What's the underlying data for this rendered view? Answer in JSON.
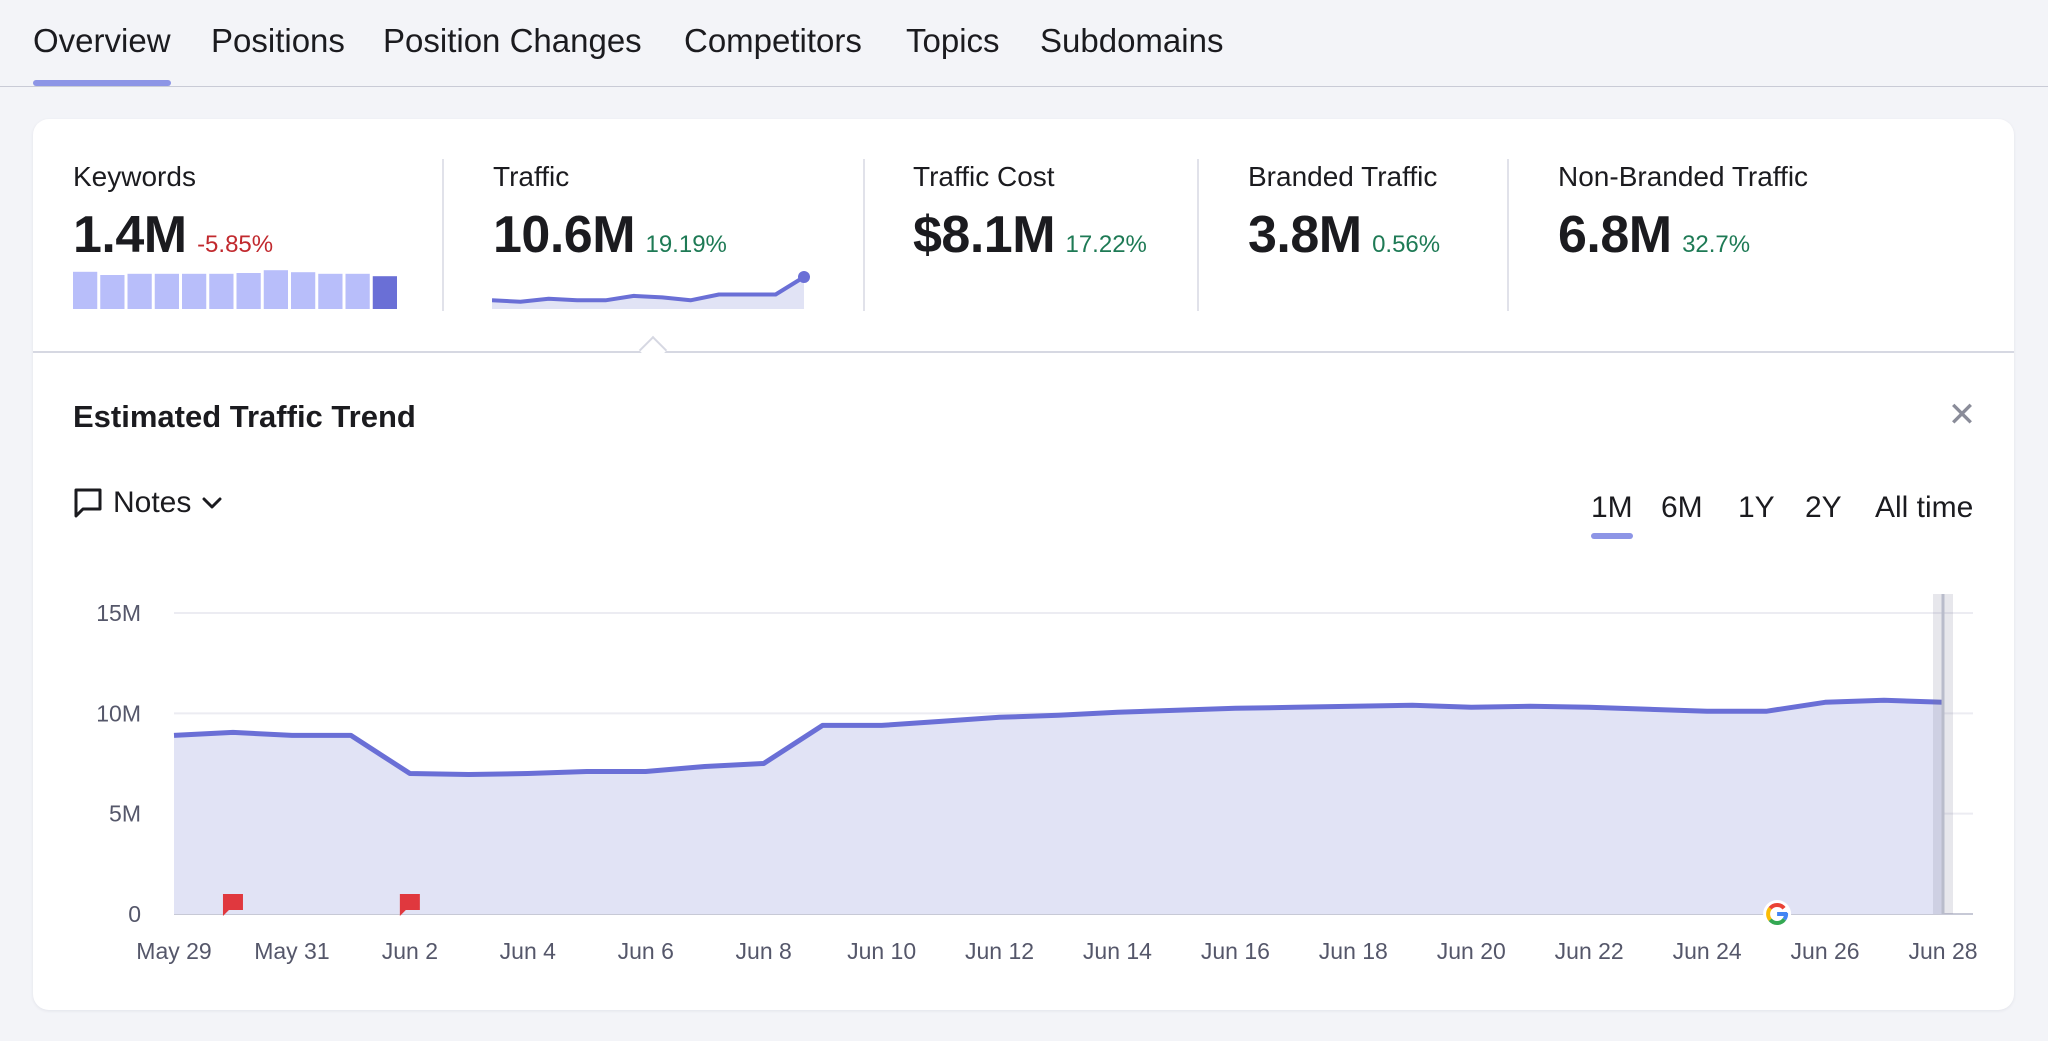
{
  "tabs": [
    {
      "label": "Overview",
      "active": true
    },
    {
      "label": "Positions"
    },
    {
      "label": "Position Changes"
    },
    {
      "label": "Competitors"
    },
    {
      "label": "Topics"
    },
    {
      "label": "Subdomains"
    }
  ],
  "metrics": [
    {
      "label": "Keywords",
      "value": "1.4M",
      "delta": "-5.85%",
      "trend": "negative"
    },
    {
      "label": "Traffic",
      "value": "10.6M",
      "delta": "19.19%",
      "trend": "positive"
    },
    {
      "label": "Traffic Cost",
      "value": "$8.1M",
      "delta": "17.22%",
      "trend": "positive"
    },
    {
      "label": "Branded Traffic",
      "value": "3.8M",
      "delta": "0.56%",
      "trend": "positive"
    },
    {
      "label": "Non-Branded Traffic",
      "value": "6.8M",
      "delta": "32.7%",
      "trend": "positive"
    }
  ],
  "keywords_sparkbars": [
    0.93,
    0.85,
    0.88,
    0.88,
    0.88,
    0.88,
    0.9,
    0.97,
    0.92,
    0.88,
    0.88,
    0.82
  ],
  "traffic_sparkline": [
    9.0,
    8.9,
    9.1,
    9.0,
    9.0,
    9.3,
    9.2,
    9.0,
    9.4,
    9.4,
    9.4,
    10.6
  ],
  "trend": {
    "title": "Estimated Traffic Trend",
    "close_icon": "close-icon",
    "notes_label": "Notes",
    "ranges": [
      {
        "label": "1M",
        "active": true
      },
      {
        "label": "6M"
      },
      {
        "label": "1Y"
      },
      {
        "label": "2Y"
      },
      {
        "label": "All time"
      }
    ]
  },
  "colors": {
    "accent": "#6a6fd6",
    "accent_fill": "#e1e3f5",
    "accent_light": "#b8befa",
    "negative": "#c1292e",
    "positive": "#1e7a55",
    "note_marker": "#e0383e"
  },
  "chart_data": {
    "type": "area",
    "title": "Estimated Traffic Trend",
    "xlabel": "",
    "ylabel": "",
    "x": [
      "May 29",
      "May 30",
      "May 31",
      "Jun 1",
      "Jun 2",
      "Jun 3",
      "Jun 4",
      "Jun 5",
      "Jun 6",
      "Jun 7",
      "Jun 8",
      "Jun 9",
      "Jun 10",
      "Jun 11",
      "Jun 12",
      "Jun 13",
      "Jun 14",
      "Jun 15",
      "Jun 16",
      "Jun 17",
      "Jun 18",
      "Jun 19",
      "Jun 20",
      "Jun 21",
      "Jun 22",
      "Jun 23",
      "Jun 24",
      "Jun 25",
      "Jun 26",
      "Jun 27",
      "Jun 28"
    ],
    "series": [
      {
        "values": [
          8.9,
          9.05,
          8.9,
          8.9,
          7.0,
          6.95,
          7.0,
          7.1,
          7.1,
          7.35,
          7.5,
          9.4,
          9.4,
          9.6,
          9.8,
          9.9,
          10.05,
          10.15,
          10.25,
          10.3,
          10.35,
          10.4,
          10.3,
          10.35,
          10.3,
          10.2,
          10.1,
          10.1,
          10.55,
          10.65,
          10.55
        ]
      }
    ],
    "y_ticks": [
      "0",
      "5M",
      "10M",
      "15M"
    ],
    "x_ticks": [
      "May 29",
      "May 31",
      "Jun 2",
      "Jun 4",
      "Jun 6",
      "Jun 8",
      "Jun 10",
      "Jun 12",
      "Jun 14",
      "Jun 16",
      "Jun 18",
      "Jun 20",
      "Jun 22",
      "Jun 24",
      "Jun 26",
      "Jun 28"
    ],
    "ylim": [
      0,
      15
    ],
    "unit": "M",
    "grid": true,
    "note_markers": [
      "May 30",
      "Jun 2"
    ],
    "google_marker": "Jun 25"
  }
}
